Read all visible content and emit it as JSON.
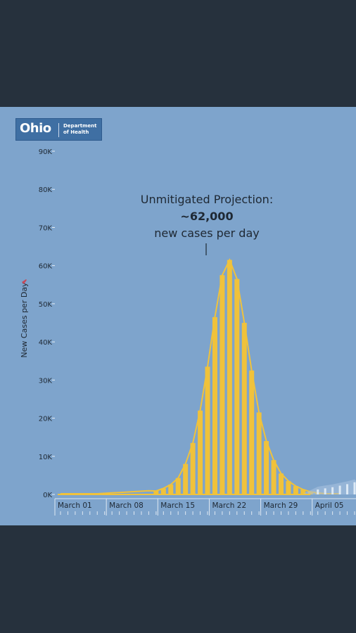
{
  "logo": {
    "main": "Ohio",
    "sub_line1": "Department",
    "sub_line2": "of Health"
  },
  "annotation": {
    "line1": "Unmitigated Projection:",
    "value": "~62,000",
    "line3": "new cases per day"
  },
  "colors": {
    "background": "#7ea4cc",
    "bars": "#f0c23b",
    "curve": "#f0c23b",
    "page_frame": "#26313d",
    "mitigated_bars": "#dce9f5"
  },
  "chart_data": {
    "type": "bar",
    "ylabel": "New Cases per Day",
    "ylim": [
      0,
      90000
    ],
    "y_ticks": [
      {
        "value": 0,
        "label": "0K"
      },
      {
        "value": 10000,
        "label": "10K"
      },
      {
        "value": 20000,
        "label": "20K"
      },
      {
        "value": 30000,
        "label": "30K"
      },
      {
        "value": 40000,
        "label": "40K"
      },
      {
        "value": 50000,
        "label": "50K"
      },
      {
        "value": 60000,
        "label": "60K"
      },
      {
        "value": 70000,
        "label": "70K"
      },
      {
        "value": 80000,
        "label": "80K"
      },
      {
        "value": 90000,
        "label": "90K"
      }
    ],
    "x_tick_labels": [
      "March 01",
      "March 08",
      "March 15",
      "March 22",
      "March 29",
      "April 05"
    ],
    "series": [
      {
        "name": "Unmitigated Projection",
        "start_date": "March 14",
        "values": [
          900,
          1600,
          2600,
          4300,
          8000,
          13500,
          22000,
          33500,
          46500,
          57500,
          61500,
          56500,
          45000,
          32500,
          21500,
          14000,
          9000,
          5500,
          3500,
          2200,
          1300,
          700,
          400
        ]
      },
      {
        "start_date": "April 05",
        "values": [
          1300,
          1600,
          1900,
          2300,
          2700,
          3200
        ]
      }
    ]
  }
}
